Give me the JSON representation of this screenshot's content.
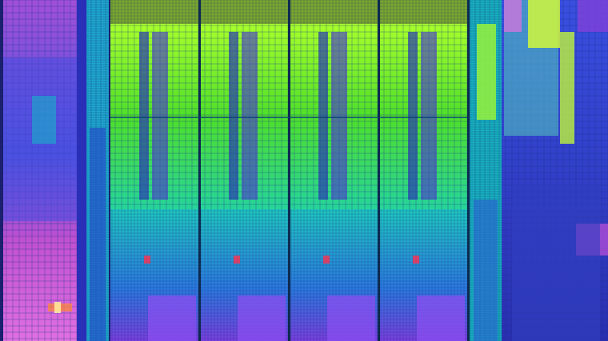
{
  "image": {
    "subject": "processor-die-shot",
    "core_count": 4,
    "palette": {
      "background": "#1a1f6e",
      "cache_green": "#4fe02a",
      "cache_lime": "#a8ff2a",
      "cyan": "#1fd0d8",
      "teal": "#18a8a8",
      "purple": "#6a3fd0",
      "violet": "#8a4ff0",
      "magenta": "#c04fd8",
      "pink": "#e070e0",
      "blue": "#3a4fe0",
      "deep_blue": "#2430a8",
      "yellow": "#e8ff30",
      "orange": "#ff8a30",
      "red": "#ff3050"
    }
  }
}
